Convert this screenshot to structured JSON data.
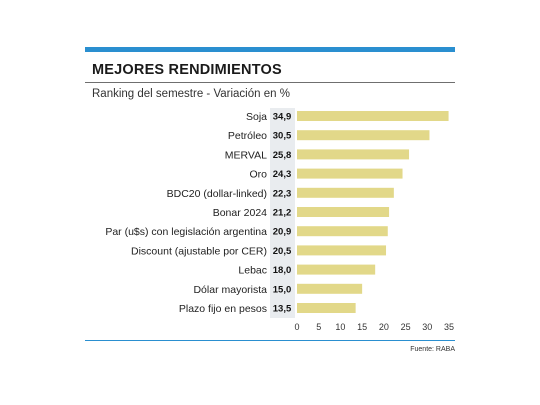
{
  "header": {
    "title": "MEJORES RENDIMIENTOS",
    "subtitle": "Ranking del semestre - Variación en %"
  },
  "footer": {
    "source": "Fuente: RABA"
  },
  "colors": {
    "accent": "#2a8fd0",
    "bar": "#e2d889",
    "value_band": "#e9ecef"
  },
  "chart_data": {
    "type": "bar",
    "orientation": "horizontal",
    "title": "MEJORES RENDIMIENTOS",
    "subtitle": "Ranking del semestre - Variación en %",
    "categories": [
      "Soja",
      "Petróleo",
      "MERVAL",
      "Oro",
      "BDC20 (dollar-linked)",
      "Bonar 2024",
      "Par (u$s) con legislación argentina",
      "Discount (ajustable por CER)",
      "Lebac",
      "Dólar mayorista",
      "Plazo fijo en pesos"
    ],
    "values": [
      34.9,
      30.5,
      25.8,
      24.3,
      22.3,
      21.2,
      20.9,
      20.5,
      18.0,
      15.0,
      13.5
    ],
    "value_labels": [
      "34,9",
      "30,5",
      "25,8",
      "24,3",
      "22,3",
      "21,2",
      "20,9",
      "20,5",
      "18,0",
      "15,0",
      "13,5"
    ],
    "xlim": [
      0,
      35
    ],
    "xticks": [
      "0",
      "5",
      "10",
      "15",
      "20",
      "25",
      "30",
      "35"
    ],
    "grid": false,
    "source": "Fuente: RABA"
  }
}
